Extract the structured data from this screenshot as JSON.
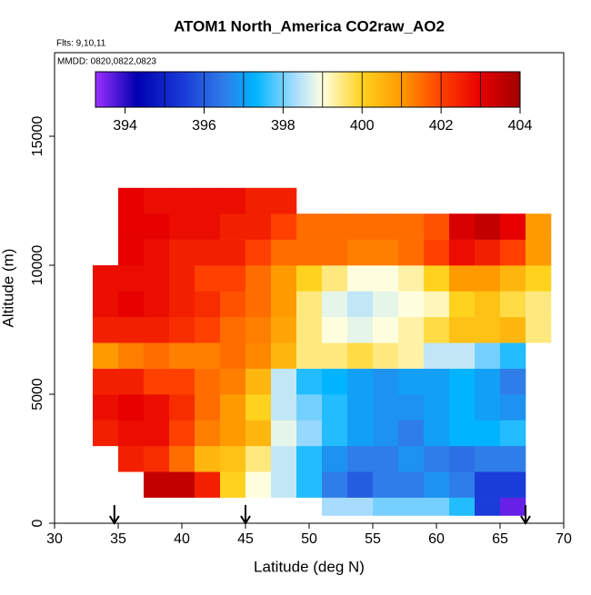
{
  "chart_data": {
    "type": "heatmap",
    "title": "ATOM1 North_America CO2raw_AO2",
    "notes": [
      "Flts: 9,10,11",
      "MMDD: 0820,0822,0823"
    ],
    "x_label": "Latitude (deg N)",
    "y_label": "Altitude (m)",
    "xlim": [
      30,
      70
    ],
    "xticks": [
      30,
      35,
      40,
      45,
      50,
      55,
      60,
      65,
      70
    ],
    "ylim": [
      0,
      18240
    ],
    "yticks": [
      0,
      5000,
      10000,
      15000
    ],
    "x_edges": [
      33,
      35,
      37,
      39,
      41,
      43,
      45,
      47,
      49,
      51,
      53,
      55,
      57,
      59,
      61,
      63,
      65,
      67,
      69
    ],
    "y_edges": [
      300,
      1000,
      2000,
      3000,
      4000,
      5000,
      6000,
      7000,
      8000,
      9000,
      10000,
      11000,
      12000,
      13000
    ],
    "z": [
      [
        null,
        null,
        null,
        null,
        null,
        null,
        null,
        null,
        null,
        398.3,
        398.3,
        398,
        398,
        398,
        397.5,
        395.5,
        393.6,
        null
      ],
      [
        null,
        null,
        403.5,
        403.5,
        402.5,
        400,
        399,
        398.5,
        397.5,
        396.5,
        396,
        396.5,
        396.5,
        396.8,
        396.5,
        395.5,
        395.5,
        null
      ],
      [
        null,
        402.5,
        402.3,
        401.5,
        400.5,
        400.3,
        399.5,
        398.5,
        397.5,
        396.8,
        396.5,
        396.5,
        396.8,
        396.5,
        396.3,
        396.5,
        396.5,
        null
      ],
      [
        402.5,
        402.8,
        402.8,
        402,
        401.3,
        401,
        400.5,
        398.8,
        398.2,
        397.5,
        397,
        396.8,
        396.5,
        397,
        397.3,
        397.3,
        397.5,
        null
      ],
      [
        402.8,
        403,
        402.8,
        402.3,
        401.5,
        401,
        400,
        398.5,
        398,
        397.5,
        397,
        396.8,
        396.8,
        397,
        397.3,
        397,
        396.8,
        null
      ],
      [
        402.5,
        402.5,
        402,
        402,
        401.5,
        401.3,
        400.5,
        398.5,
        397.5,
        397.3,
        397,
        396.8,
        397,
        397,
        397.3,
        397,
        396.5,
        null
      ],
      [
        401,
        401.3,
        401.5,
        401.3,
        401.3,
        401.5,
        401.2,
        400.5,
        399.5,
        399.5,
        399.8,
        399.5,
        399.3,
        398.5,
        398.5,
        398,
        397.5,
        null
      ],
      [
        402.5,
        402.5,
        402.5,
        402.3,
        402,
        401.5,
        401.3,
        400.8,
        399.5,
        399,
        398.8,
        399,
        399.3,
        399.8,
        400.3,
        400.3,
        400.5,
        399.5
      ],
      [
        402.8,
        403,
        402.8,
        402.5,
        402.3,
        401.8,
        401.5,
        401,
        399.5,
        398.8,
        398.5,
        398.8,
        399,
        399.2,
        400,
        400.3,
        399.8,
        399.5
      ],
      [
        402.8,
        402.8,
        402.8,
        402.5,
        402,
        402,
        401.5,
        401,
        400,
        399.5,
        399,
        399,
        399.3,
        400,
        401,
        401,
        400.5,
        400
      ],
      [
        null,
        403,
        402.8,
        402.5,
        402.5,
        402.5,
        402,
        401.5,
        401.5,
        401.5,
        401.3,
        401.3,
        401.5,
        402,
        402.8,
        402.5,
        402,
        401
      ],
      [
        null,
        403,
        403,
        402.8,
        402.8,
        402.5,
        402.5,
        402,
        401.5,
        401.5,
        401.5,
        401.5,
        401.5,
        401.8,
        403.2,
        403.5,
        403,
        401
      ],
      [
        null,
        403,
        402.8,
        402.8,
        402.8,
        402.8,
        402.5,
        402.5,
        null,
        null,
        null,
        null,
        null,
        null,
        null,
        null,
        null,
        null
      ]
    ],
    "colorscale": [
      {
        "value": 393.25,
        "color": "#9b30ff"
      },
      {
        "value": 394.3,
        "color": "#0000b0"
      },
      {
        "value": 395.5,
        "color": "#1a3cd8"
      },
      {
        "value": 396.5,
        "color": "#2f7de8"
      },
      {
        "value": 397.3,
        "color": "#00b4ff"
      },
      {
        "value": 398.3,
        "color": "#a8dcff"
      },
      {
        "value": 399,
        "color": "#ffffe0"
      },
      {
        "value": 400,
        "color": "#ffd21e"
      },
      {
        "value": 401,
        "color": "#ff9a00"
      },
      {
        "value": 402,
        "color": "#ff4000"
      },
      {
        "value": 403,
        "color": "#e60000"
      },
      {
        "value": 404,
        "color": "#a00000"
      }
    ],
    "colorbar_lim": [
      393.25,
      404
    ],
    "colorbar_ticks": [
      394,
      396,
      398,
      400,
      402,
      404
    ],
    "colorbar_breaks": [
      395,
      396,
      397,
      398,
      399,
      400,
      401,
      402,
      403
    ],
    "flight_markers": [
      34.7,
      45,
      67
    ]
  }
}
